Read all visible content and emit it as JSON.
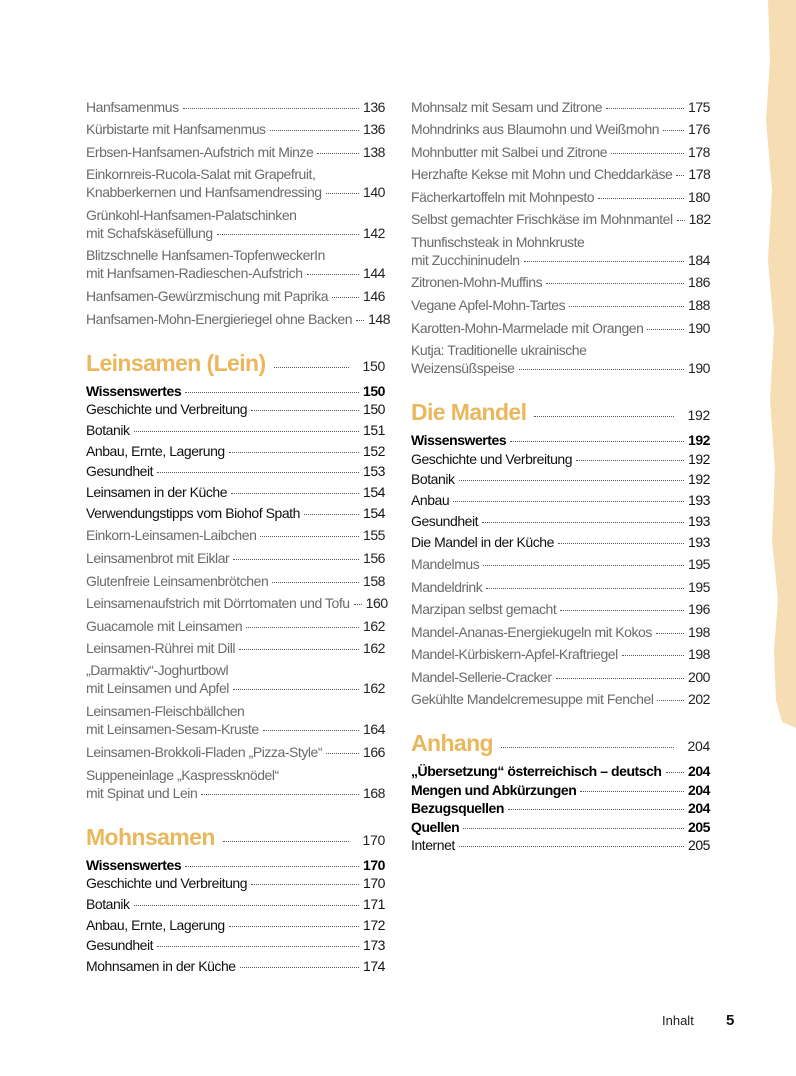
{
  "colors": {
    "heading": "#e9b75c",
    "recipe_text": "#6b6b6b",
    "brush": "#f6ddb3"
  },
  "left_column": [
    {
      "type": "recipe",
      "lines": [
        "Hanfsamenmus"
      ],
      "page": "136"
    },
    {
      "type": "recipe",
      "lines": [
        "Kürbistarte mit Hanfsamenmus"
      ],
      "page": "136"
    },
    {
      "type": "recipe",
      "lines": [
        "Erbsen-Hanfsamen-Aufstrich mit Minze"
      ],
      "page": "138"
    },
    {
      "type": "recipe",
      "lines": [
        "Einkornreis-Rucola-Salat mit Grapefruit,",
        "Knabberkernen und Hanfsamendressing"
      ],
      "page": "140"
    },
    {
      "type": "recipe",
      "lines": [
        "Grünkohl-Hanfsamen-Palatschinken",
        "mit Schafskäsefüllung"
      ],
      "page": "142"
    },
    {
      "type": "recipe",
      "lines": [
        "Blitzschnelle Hanfsamen-TopfenweckerIn",
        "mit Hanfsamen-Radieschen-Aufstrich"
      ],
      "page": "144"
    },
    {
      "type": "recipe",
      "lines": [
        "Hanfsamen-Gewürzmischung mit Paprika"
      ],
      "page": "146"
    },
    {
      "type": "recipe",
      "lines": [
        "Hanfsamen-Mohn-Energieriegel ohne Backen"
      ],
      "page": "148"
    },
    {
      "type": "heading",
      "lines": [
        "Leinsamen (Lein)"
      ],
      "page": "150"
    },
    {
      "type": "section",
      "lines": [
        "Wissenswertes"
      ],
      "page": "150"
    },
    {
      "type": "topic",
      "lines": [
        "Geschichte und Verbreitung"
      ],
      "page": "150"
    },
    {
      "type": "topic",
      "lines": [
        "Botanik"
      ],
      "page": "151"
    },
    {
      "type": "topic",
      "lines": [
        "Anbau, Ernte, Lagerung"
      ],
      "page": "152"
    },
    {
      "type": "topic",
      "lines": [
        "Gesundheit"
      ],
      "page": "153"
    },
    {
      "type": "topic",
      "lines": [
        "Leinsamen in der Küche"
      ],
      "page": "154"
    },
    {
      "type": "topic",
      "lines": [
        "Verwendungstipps vom Biohof Spath"
      ],
      "page": "154"
    },
    {
      "type": "recipe",
      "lines": [
        "Einkorn-Leinsamen-Laibchen"
      ],
      "page": "155"
    },
    {
      "type": "recipe",
      "lines": [
        "Leinsamenbrot mit Eiklar"
      ],
      "page": "156"
    },
    {
      "type": "recipe",
      "lines": [
        "Glutenfreie Leinsamenbrötchen"
      ],
      "page": "158"
    },
    {
      "type": "recipe",
      "lines": [
        "Leinsamenaufstrich mit Dörrtomaten und Tofu"
      ],
      "page": "160"
    },
    {
      "type": "recipe",
      "lines": [
        "Guacamole mit Leinsamen"
      ],
      "page": "162"
    },
    {
      "type": "recipe",
      "lines": [
        "Leinsamen-Rührei mit Dill"
      ],
      "page": "162"
    },
    {
      "type": "recipe",
      "lines": [
        "„Darmaktiv“-Joghurtbowl",
        "mit Leinsamen und Apfel"
      ],
      "page": "162"
    },
    {
      "type": "recipe",
      "lines": [
        "Leinsamen-Fleischbällchen",
        "mit Leinsamen-Sesam-Kruste"
      ],
      "page": "164"
    },
    {
      "type": "recipe",
      "lines": [
        "Leinsamen-Brokkoli-Fladen „Pizza-Style“"
      ],
      "page": "166"
    },
    {
      "type": "recipe",
      "lines": [
        "Suppeneinlage „Kaspressknödel“",
        "mit Spinat und Lein"
      ],
      "page": "168"
    },
    {
      "type": "heading",
      "lines": [
        "Mohnsamen"
      ],
      "page": "170"
    },
    {
      "type": "section",
      "lines": [
        "Wissenswertes"
      ],
      "page": "170"
    },
    {
      "type": "topic",
      "lines": [
        "Geschichte und Verbreitung"
      ],
      "page": "170"
    },
    {
      "type": "topic",
      "lines": [
        "Botanik"
      ],
      "page": "171"
    },
    {
      "type": "topic",
      "lines": [
        "Anbau, Ernte, Lagerung"
      ],
      "page": "172"
    },
    {
      "type": "topic",
      "lines": [
        "Gesundheit"
      ],
      "page": "173"
    },
    {
      "type": "topic",
      "lines": [
        "Mohnsamen in der Küche"
      ],
      "page": "174"
    }
  ],
  "right_column": [
    {
      "type": "recipe",
      "lines": [
        "Mohnsalz mit Sesam und Zitrone"
      ],
      "page": "175"
    },
    {
      "type": "recipe",
      "lines": [
        "Mohndrinks aus Blaumohn und Weißmohn"
      ],
      "page": "176"
    },
    {
      "type": "recipe",
      "lines": [
        "Mohnbutter mit Salbei und Zitrone"
      ],
      "page": "178"
    },
    {
      "type": "recipe",
      "lines": [
        "Herzhafte Kekse mit Mohn und Cheddarkäse"
      ],
      "page": "178"
    },
    {
      "type": "recipe",
      "lines": [
        "Fächerkartoffeln mit Mohnpesto"
      ],
      "page": "180"
    },
    {
      "type": "recipe",
      "lines": [
        "Selbst gemachter Frischkäse im Mohnmantel"
      ],
      "page": "182"
    },
    {
      "type": "recipe",
      "lines": [
        "Thunfischsteak in Mohnkruste",
        "mit Zucchininudeln"
      ],
      "page": "184"
    },
    {
      "type": "recipe",
      "lines": [
        "Zitronen-Mohn-Muffins"
      ],
      "page": "186"
    },
    {
      "type": "recipe",
      "lines": [
        "Vegane Apfel-Mohn-Tartes"
      ],
      "page": "188"
    },
    {
      "type": "recipe",
      "lines": [
        "Karotten-Mohn-Marmelade mit Orangen"
      ],
      "page": "190"
    },
    {
      "type": "recipe",
      "lines": [
        "Kutja: Traditionelle ukrainische",
        "Weizensüßspeise"
      ],
      "page": "190"
    },
    {
      "type": "heading",
      "lines": [
        "Die Mandel"
      ],
      "page": "192"
    },
    {
      "type": "section",
      "lines": [
        "Wissenswertes"
      ],
      "page": "192"
    },
    {
      "type": "topic",
      "lines": [
        "Geschichte und Verbreitung"
      ],
      "page": "192"
    },
    {
      "type": "topic",
      "lines": [
        "Botanik"
      ],
      "page": "192"
    },
    {
      "type": "topic",
      "lines": [
        "Anbau"
      ],
      "page": "193"
    },
    {
      "type": "topic",
      "lines": [
        "Gesundheit"
      ],
      "page": "193"
    },
    {
      "type": "topic",
      "lines": [
        "Die Mandel in der Küche"
      ],
      "page": "193"
    },
    {
      "type": "recipe",
      "lines": [
        "Mandelmus"
      ],
      "page": "195"
    },
    {
      "type": "recipe",
      "lines": [
        "Mandeldrink"
      ],
      "page": "195"
    },
    {
      "type": "recipe",
      "lines": [
        "Marzipan selbst gemacht"
      ],
      "page": "196"
    },
    {
      "type": "recipe",
      "lines": [
        "Mandel-Ananas-Energiekugeln mit Kokos"
      ],
      "page": "198"
    },
    {
      "type": "recipe",
      "lines": [
        "Mandel-Kürbiskern-Apfel-Kraftriegel"
      ],
      "page": "198"
    },
    {
      "type": "recipe",
      "lines": [
        "Mandel-Sellerie-Cracker"
      ],
      "page": "200"
    },
    {
      "type": "recipe",
      "lines": [
        "Gekühlte Mandelcremesuppe mit Fenchel"
      ],
      "page": "202"
    },
    {
      "type": "heading",
      "lines": [
        "Anhang"
      ],
      "page": "204"
    },
    {
      "type": "section",
      "lines": [
        "„Übersetzung“ österreichisch – deutsch"
      ],
      "page": "204"
    },
    {
      "type": "section",
      "lines": [
        "Mengen und Abkürzungen"
      ],
      "page": "204"
    },
    {
      "type": "section",
      "lines": [
        "Bezugsquellen"
      ],
      "page": "204"
    },
    {
      "type": "section",
      "lines": [
        "Quellen"
      ],
      "page": "205"
    },
    {
      "type": "topic",
      "lines": [
        "Internet"
      ],
      "page": "205"
    }
  ],
  "footer": {
    "label": "Inhalt",
    "page_number": "5"
  }
}
